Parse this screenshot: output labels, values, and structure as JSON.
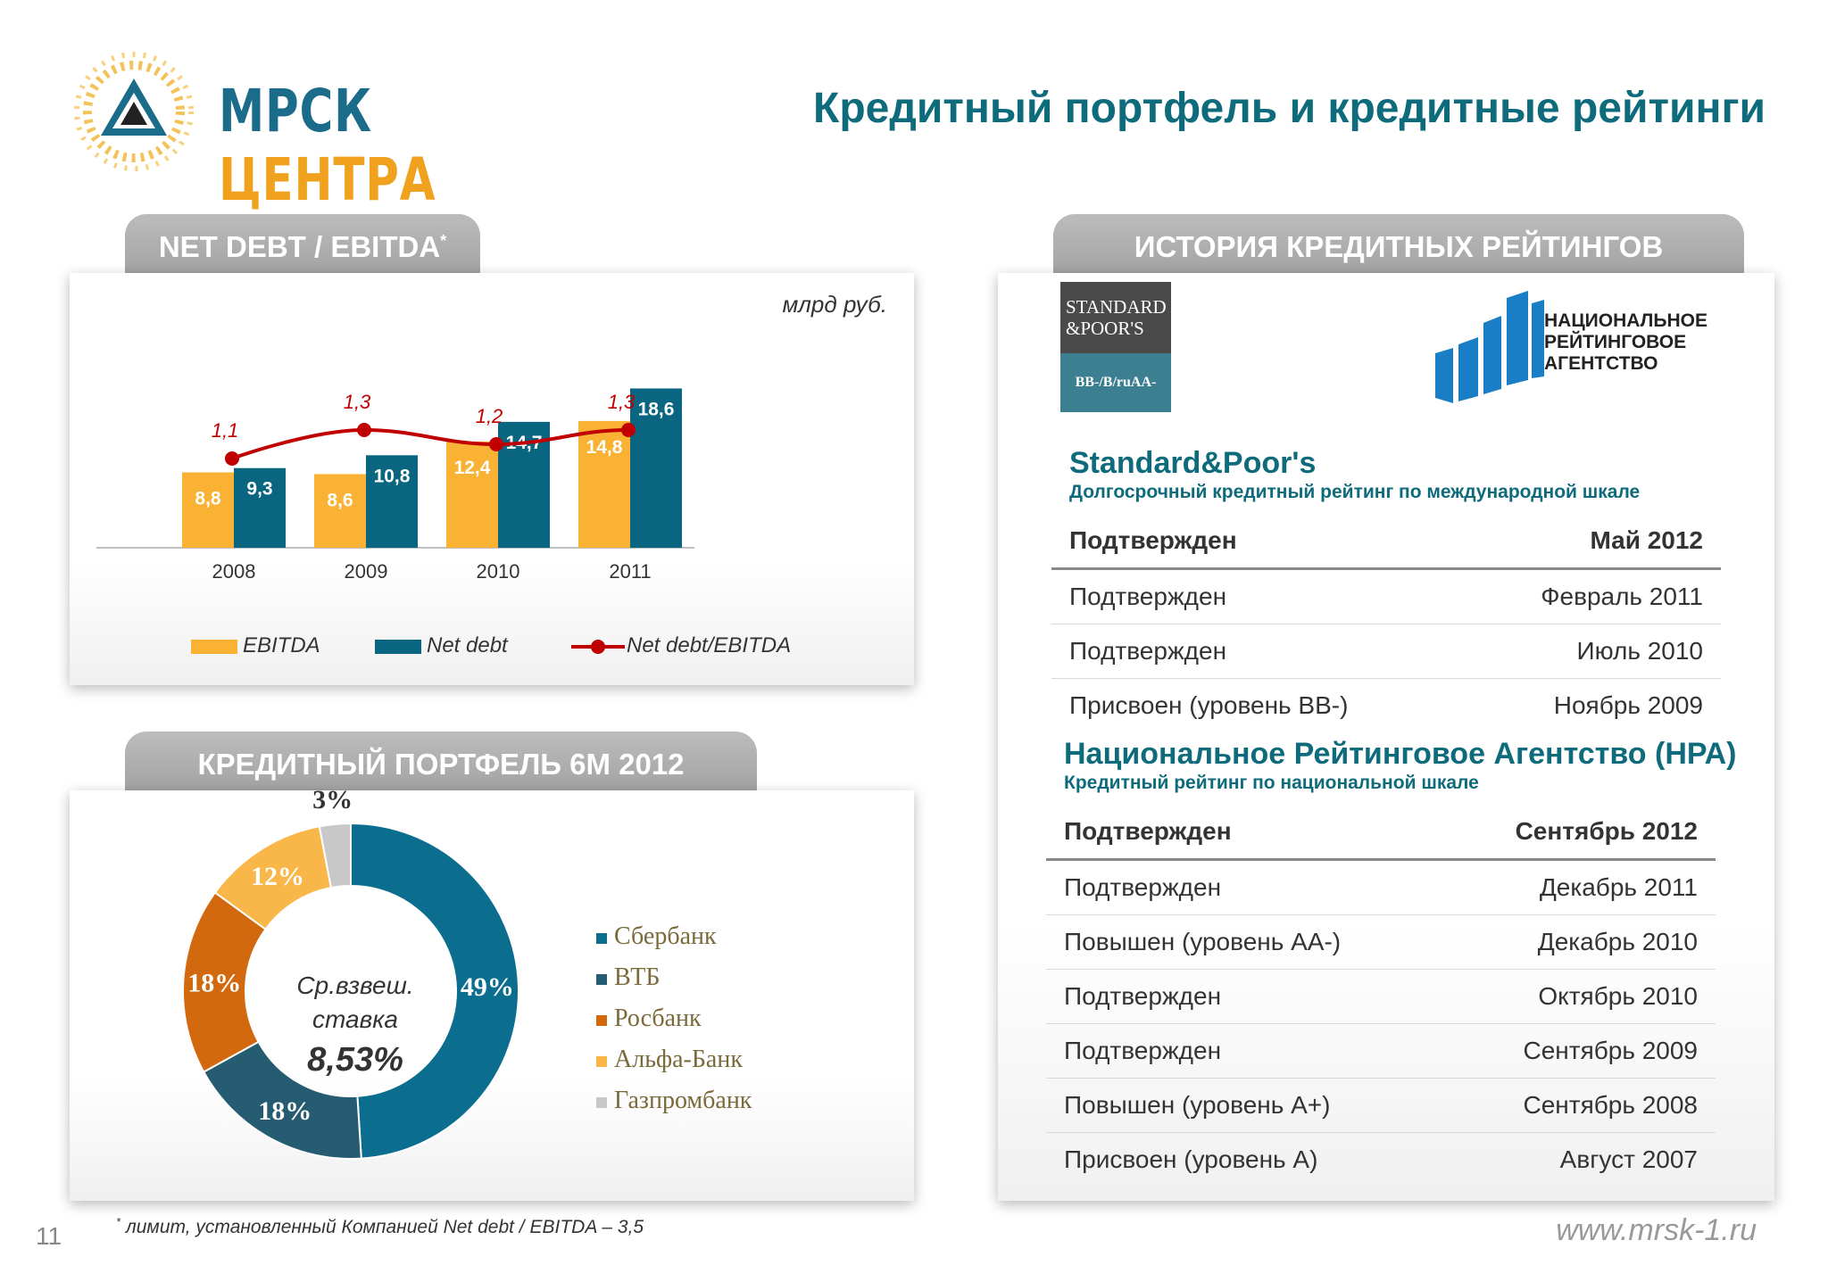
{
  "header": {
    "logo_text_a": "МРСК",
    "logo_text_b": "ЦЕНТРА",
    "title": "Кредитный портфель и кредитные рейтинги"
  },
  "net_debt_panel": {
    "tab_label": "NET DEBT / EBITDA",
    "tab_sup": "*",
    "unit": "млрд руб."
  },
  "portfolio_panel": {
    "tab_label": "КРЕДИТНЫЙ ПОРТФЕЛЬ 6М 2012",
    "center_line1": "Ср.взвеш.",
    "center_line2": "ставка",
    "center_value": "8,53%"
  },
  "ratings_panel": {
    "tab_label": "ИСТОРИЯ КРЕДИТНЫХ РЕЙТИНГОВ",
    "sp_logo_line1": "STANDARD",
    "sp_logo_line2": "&POOR'S",
    "sp_logo_rating": "BB-/B/ruAA-",
    "nra_logo_line1": "НАЦИОНАЛЬНОЕ",
    "nra_logo_line2": "РЕЙТИНГОВОЕ",
    "nra_logo_line3": "АГЕНТСТВО",
    "sp": {
      "title": "Standard&Poor's",
      "subtitle": "Долгосрочный кредитный рейтинг по международной шкале",
      "rows": [
        {
          "action": "Подтвержден",
          "date": "Май 2012"
        },
        {
          "action": "Подтвержден",
          "date": "Февраль 2011"
        },
        {
          "action": "Подтвержден",
          "date": "Июль 2010"
        },
        {
          "action": "Присвоен (уровень BB-)",
          "date": "Ноябрь 2009"
        }
      ]
    },
    "nra": {
      "title": "Национальное Рейтинговое Агентство (НРА)",
      "subtitle": "Кредитный рейтинг по национальной шкале",
      "rows": [
        {
          "action": "Подтвержден",
          "date": "Сентябрь 2012"
        },
        {
          "action": "Подтвержден",
          "date": "Декабрь 2011"
        },
        {
          "action": "Повышен (уровень АА-)",
          "date": "Декабрь 2010"
        },
        {
          "action": "Подтвержден",
          "date": "Октябрь 2010"
        },
        {
          "action": "Подтвержден",
          "date": "Сентябрь 2009"
        },
        {
          "action": "Повышен (уровень А+)",
          "date": "Сентябрь 2008"
        },
        {
          "action": "Присвоен (уровень А)",
          "date": "Август 2007"
        }
      ]
    }
  },
  "footer": {
    "page_number": "11",
    "footnote_sup": "*",
    "footnote": "лимит, установленный Компанией Net debt / EBITDA – 3,5",
    "site": "www.mrsk-1.ru"
  },
  "chart_data": [
    {
      "type": "bar",
      "categories": [
        "2008",
        "2009",
        "2010",
        "2011"
      ],
      "series": [
        {
          "name": "EBITDA",
          "values": [
            8.8,
            8.6,
            12.4,
            14.8
          ],
          "labels": [
            "8,8",
            "8,6",
            "12,4",
            "14,8"
          ],
          "color": "#f9b233"
        },
        {
          "name": "Net debt",
          "values": [
            9.3,
            10.8,
            14.7,
            18.6
          ],
          "labels": [
            "9,3",
            "10,8",
            "14,7",
            "18,6"
          ],
          "color": "#0a6580"
        }
      ],
      "line_series": {
        "name": "Net debt/EBITDA",
        "values": [
          1.1,
          1.3,
          1.2,
          1.3
        ],
        "labels": [
          "1,1",
          "1,3",
          "1,2",
          "1,3"
        ],
        "color": "#c00000"
      },
      "ylim": [
        0,
        20
      ],
      "legend": "bottom"
    },
    {
      "type": "pie",
      "donut": true,
      "slices": [
        {
          "name": "Сбербанк",
          "value": 49,
          "label": "49%",
          "color": "#0b6e8f"
        },
        {
          "name": "ВТБ",
          "value": 18,
          "label": "18%",
          "color": "#265c72"
        },
        {
          "name": "Росбанк",
          "value": 18,
          "label": "18%",
          "color": "#d2690f"
        },
        {
          "name": "Альфа-Банк",
          "value": 12,
          "label": "12%",
          "color": "#f9b649"
        },
        {
          "name": "Газпромбанк",
          "value": 3,
          "label": "3%",
          "color": "#c8c8c8"
        }
      ],
      "legend": "right"
    }
  ]
}
